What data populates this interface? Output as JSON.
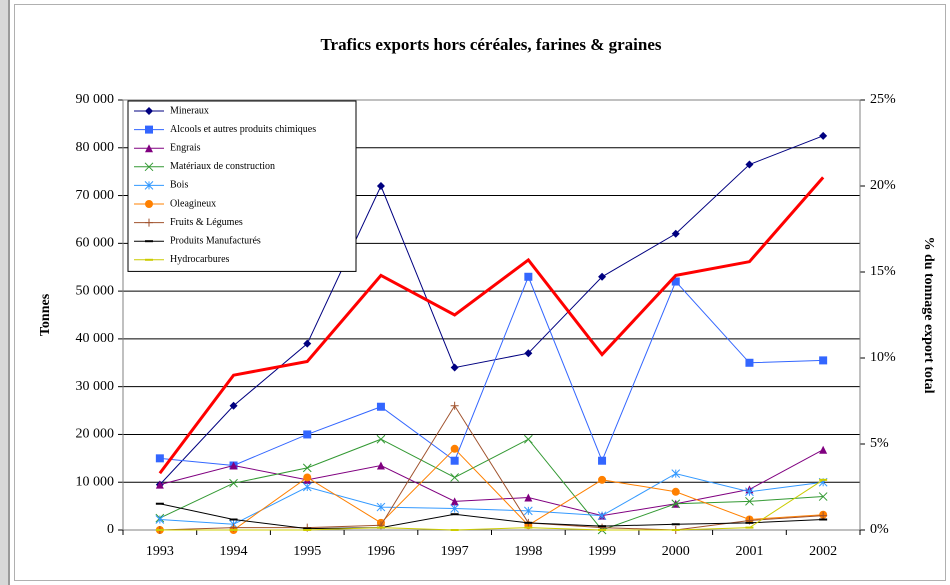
{
  "chart_data": {
    "type": "line",
    "title": "Trafics exports hors céréales, farines & graines",
    "y_label": "Tonnes",
    "y2_label": "% du tonnage export total",
    "categories": [
      "1993",
      "1994",
      "1995",
      "1996",
      "1997",
      "1998",
      "1999",
      "2000",
      "2001",
      "2002"
    ],
    "ylim": [
      0,
      90000
    ],
    "yticks": [
      0,
      {
        "value": 10000,
        "label": "10 000"
      },
      {
        "value": 20000,
        "label": "20 000"
      },
      {
        "value": 30000,
        "label": "30 000"
      },
      {
        "value": 40000,
        "label": "40 000"
      },
      {
        "value": 50000,
        "label": "50 000"
      },
      {
        "value": 60000,
        "label": "60 000"
      },
      {
        "value": 70000,
        "label": "70 000"
      },
      {
        "value": 80000,
        "label": "80 000"
      },
      {
        "value": 90000,
        "label": "90 000"
      }
    ],
    "y2lim": [
      0,
      25
    ],
    "y2ticks": [
      {
        "value": 0,
        "label": "0%"
      },
      {
        "value": 5,
        "label": "5%"
      },
      {
        "value": 10,
        "label": "10%"
      },
      {
        "value": 15,
        "label": "15%"
      },
      {
        "value": 20,
        "label": "20%"
      },
      {
        "value": 25,
        "label": "25%"
      }
    ],
    "grid": true,
    "legend": "upper left",
    "series": [
      {
        "name": "Mineraux",
        "color": "#000080",
        "marker": "diamond",
        "values": [
          9500,
          26000,
          39000,
          72000,
          34000,
          37000,
          53000,
          62000,
          76500,
          82500
        ]
      },
      {
        "name": "Alcools et autres produits chimiques",
        "color": "#3366ff",
        "marker": "square",
        "values": [
          15000,
          13500,
          20000,
          25800,
          14500,
          53000,
          14500,
          52000,
          35000,
          35500
        ]
      },
      {
        "name": "Engrais",
        "color": "#800080",
        "marker": "triangle",
        "values": [
          9500,
          13500,
          10500,
          13500,
          6000,
          6800,
          3000,
          5500,
          8500,
          16800
        ]
      },
      {
        "name": "Matériaux de construction",
        "color": "#339933",
        "marker": "x",
        "values": [
          2500,
          9800,
          13000,
          19000,
          11000,
          19000,
          0,
          5500,
          6000,
          7000
        ]
      },
      {
        "name": "Bois",
        "color": "#3399ff",
        "marker": "asterisk",
        "values": [
          2200,
          1200,
          9000,
          4800,
          4500,
          4000,
          3000,
          11800,
          8000,
          10000
        ]
      },
      {
        "name": "Oleagineux",
        "color": "#ff8000",
        "marker": "circle",
        "values": [
          0,
          0,
          11000,
          1500,
          17000,
          1000,
          10500,
          8000,
          2200,
          3200
        ]
      },
      {
        "name": "Fruits & Légumes",
        "color": "#a0522d",
        "marker": "plus",
        "values": [
          0,
          500,
          500,
          1000,
          26000,
          1500,
          500,
          0,
          2000,
          3000
        ]
      },
      {
        "name": "Produits Manufacturés",
        "color": "#000000",
        "marker": "dash",
        "values": [
          5500,
          2200,
          300,
          500,
          3300,
          1500,
          800,
          1200,
          1500,
          2200
        ]
      },
      {
        "name": "Hydrocarbures",
        "color": "#cccc00",
        "marker": "dash",
        "values": [
          0,
          0,
          0,
          500,
          0,
          500,
          0,
          0,
          500,
          10500
        ]
      },
      {
        "color": "#ff0000",
        "axis": "y2",
        "marker": "none",
        "values": [
          3.3,
          9.0,
          9.8,
          14.8,
          12.5,
          15.7,
          10.2,
          14.8,
          15.6,
          20.5
        ]
      }
    ]
  }
}
